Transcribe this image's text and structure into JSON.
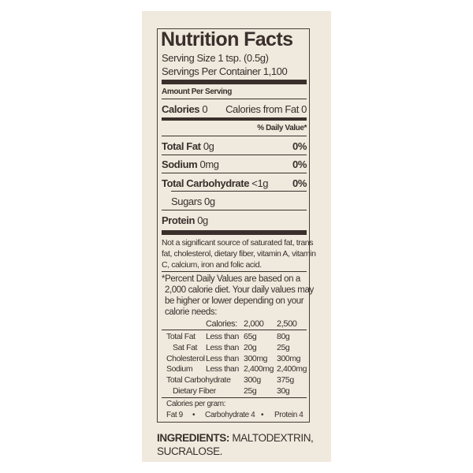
{
  "label": {
    "title": "Nutrition Facts",
    "serving_size": "Serving Size 1 tsp. (0.5g)",
    "servings_per_container": "Servings Per Container 1,100",
    "amount_per_serving": "Amount Per Serving",
    "calories_label": "Calories",
    "calories_value": "0",
    "calories_from_fat": "Calories from Fat 0",
    "dv_header": "% Daily Value*",
    "nutrients": [
      {
        "name": "Total Fat",
        "amount": "0g",
        "dv": "0%"
      },
      {
        "name": "Sodium",
        "amount": "0mg",
        "dv": "0%"
      },
      {
        "name": "Total Carbohydrate",
        "amount": "<1g",
        "dv": "0%"
      },
      {
        "name": "Sugars",
        "amount": "0g",
        "dv": ""
      },
      {
        "name": "Protein",
        "amount": "0g",
        "dv": ""
      }
    ],
    "not_significant": [
      "Not a significant source of saturated fat, trans",
      "fat, cholesterol, dietary fiber, vitamin A, vitamin",
      "C, calcium, iron and folic acid."
    ],
    "footnote": [
      "*Percent Daily Values are based on a",
      "2,000 calorie diet. Your daily values may",
      "be higher or lower depending on your",
      "calorie needs:"
    ],
    "dv_table": {
      "header": [
        "Calories:",
        "2,000",
        "2,500"
      ],
      "rows": [
        [
          "Total Fat",
          "Less than",
          "65g",
          "80g"
        ],
        [
          "Sat Fat",
          "Less than",
          "20g",
          "25g"
        ],
        [
          "Cholesterol",
          "Less than",
          "300mg",
          "300mg"
        ],
        [
          "Sodium",
          "Less than",
          "2,400mg",
          "2,400mg"
        ],
        [
          "Total Carbohydrate",
          "",
          "300g",
          "375g"
        ],
        [
          "Dietary Fiber",
          "",
          "25g",
          "30g"
        ]
      ]
    },
    "calories_per_gram": "Calories per gram:",
    "cpg": [
      "Fat 9",
      "•",
      "Carbohydrate 4",
      "•",
      "Protein 4"
    ]
  },
  "ingredients": {
    "label": "INGREDIENTS:",
    "line1": "MALTODEXTRIN,",
    "line2": "SUCRALOSE."
  }
}
